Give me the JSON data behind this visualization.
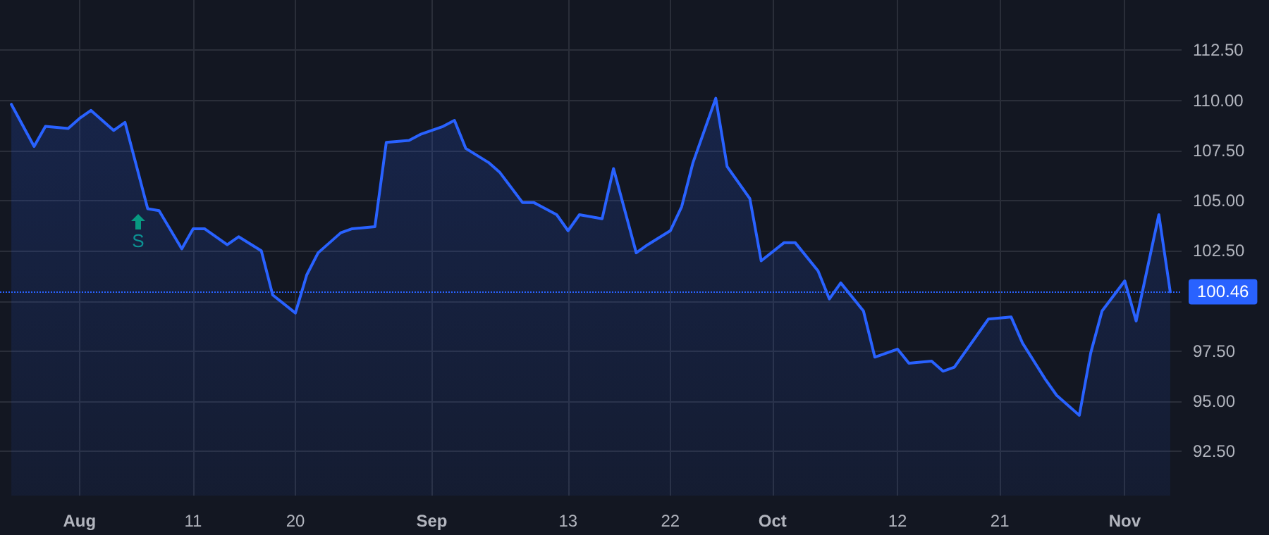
{
  "chart_data": {
    "type": "area",
    "x": [
      "--07-26",
      "--07-28",
      "--07-29",
      "--07-31",
      "--08-01",
      "--08-02",
      "--08-04",
      "--08-05",
      "--08-07",
      "--08-08",
      "--08-10",
      "--08-11",
      "--08-12",
      "--08-14",
      "--08-15",
      "--08-17",
      "--08-18",
      "--08-20",
      "--08-21",
      "--08-22",
      "--08-24",
      "--08-25",
      "--08-27",
      "--08-28",
      "--08-30",
      "--08-31",
      "--09-02",
      "--09-03",
      "--09-04",
      "--09-06",
      "--09-07",
      "--09-09",
      "--09-10",
      "--09-12",
      "--09-13",
      "--09-14",
      "--09-16",
      "--09-17",
      "--09-19",
      "--09-20",
      "--09-22",
      "--09-23",
      "--09-24",
      "--09-26",
      "--09-27",
      "--09-29",
      "--09-30",
      "--10-02",
      "--10-03",
      "--10-05",
      "--10-06",
      "--10-07",
      "--10-09",
      "--10-10",
      "--10-12",
      "--10-13",
      "--10-15",
      "--10-16",
      "--10-17",
      "--10-19",
      "--10-20",
      "--10-22",
      "--10-23",
      "--10-25",
      "--10-26",
      "--10-28",
      "--10-29",
      "--10-30",
      "--11-01",
      "--11-02",
      "--11-04",
      "--11-05"
    ],
    "series": [
      {
        "color": "#2962ff",
        "values": [
          109.8,
          107.7,
          108.7,
          108.6,
          109.1,
          109.5,
          108.5,
          108.9,
          104.6,
          104.5,
          102.6,
          103.6,
          103.6,
          102.8,
          103.2,
          102.5,
          100.3,
          99.4,
          101.3,
          102.4,
          103.4,
          103.6,
          103.7,
          107.9,
          108.0,
          108.3,
          108.7,
          109.0,
          107.6,
          106.9,
          106.4,
          104.9,
          104.9,
          104.3,
          103.5,
          104.3,
          104.1,
          106.6,
          102.4,
          102.8,
          103.5,
          104.7,
          106.9,
          110.1,
          106.7,
          105.1,
          102.0,
          102.9,
          102.9,
          101.5,
          100.1,
          100.9,
          99.5,
          97.2,
          97.6,
          96.9,
          97.0,
          96.5,
          96.7,
          98.3,
          99.1,
          99.2,
          97.9,
          96.1,
          95.3,
          94.3,
          97.4,
          99.5,
          101.0,
          99.0,
          104.3,
          100.46
        ]
      }
    ],
    "xlim": [
      "--07-25",
      "--11-06"
    ],
    "xticks": [
      {
        "value": "--08-01",
        "label": "Aug"
      },
      {
        "value": "--08-11",
        "label": "11"
      },
      {
        "value": "--08-20",
        "label": "20"
      },
      {
        "value": "--09-01",
        "label": "Sep"
      },
      {
        "value": "--09-13",
        "label": "13"
      },
      {
        "value": "--09-22",
        "label": "22"
      },
      {
        "value": "--10-01",
        "label": "Oct"
      },
      {
        "value": "--10-12",
        "label": "12"
      },
      {
        "value": "--10-21",
        "label": "21"
      },
      {
        "value": "--11-01",
        "label": "Nov"
      }
    ],
    "ylim": [
      90.3,
      115
    ],
    "yticks": [
      {
        "value": 92.5,
        "label": "92.50"
      },
      {
        "value": 95,
        "label": "95.00"
      },
      {
        "value": 97.5,
        "label": "97.50"
      },
      {
        "value": 100,
        "label": null
      },
      {
        "value": 102.5,
        "label": "102.50"
      },
      {
        "value": 105,
        "label": "105.00"
      },
      {
        "value": 107.5,
        "label": "107.50"
      },
      {
        "value": 110,
        "label": "110.00"
      },
      {
        "value": 112.5,
        "label": "112.50"
      }
    ],
    "ref_lines": [
      {
        "axis": "y",
        "value": 100.46,
        "label": "100.46",
        "color": "#2962ff",
        "line_style": "dotted"
      }
    ],
    "annotations": [
      "S"
    ],
    "grid": true
  }
}
